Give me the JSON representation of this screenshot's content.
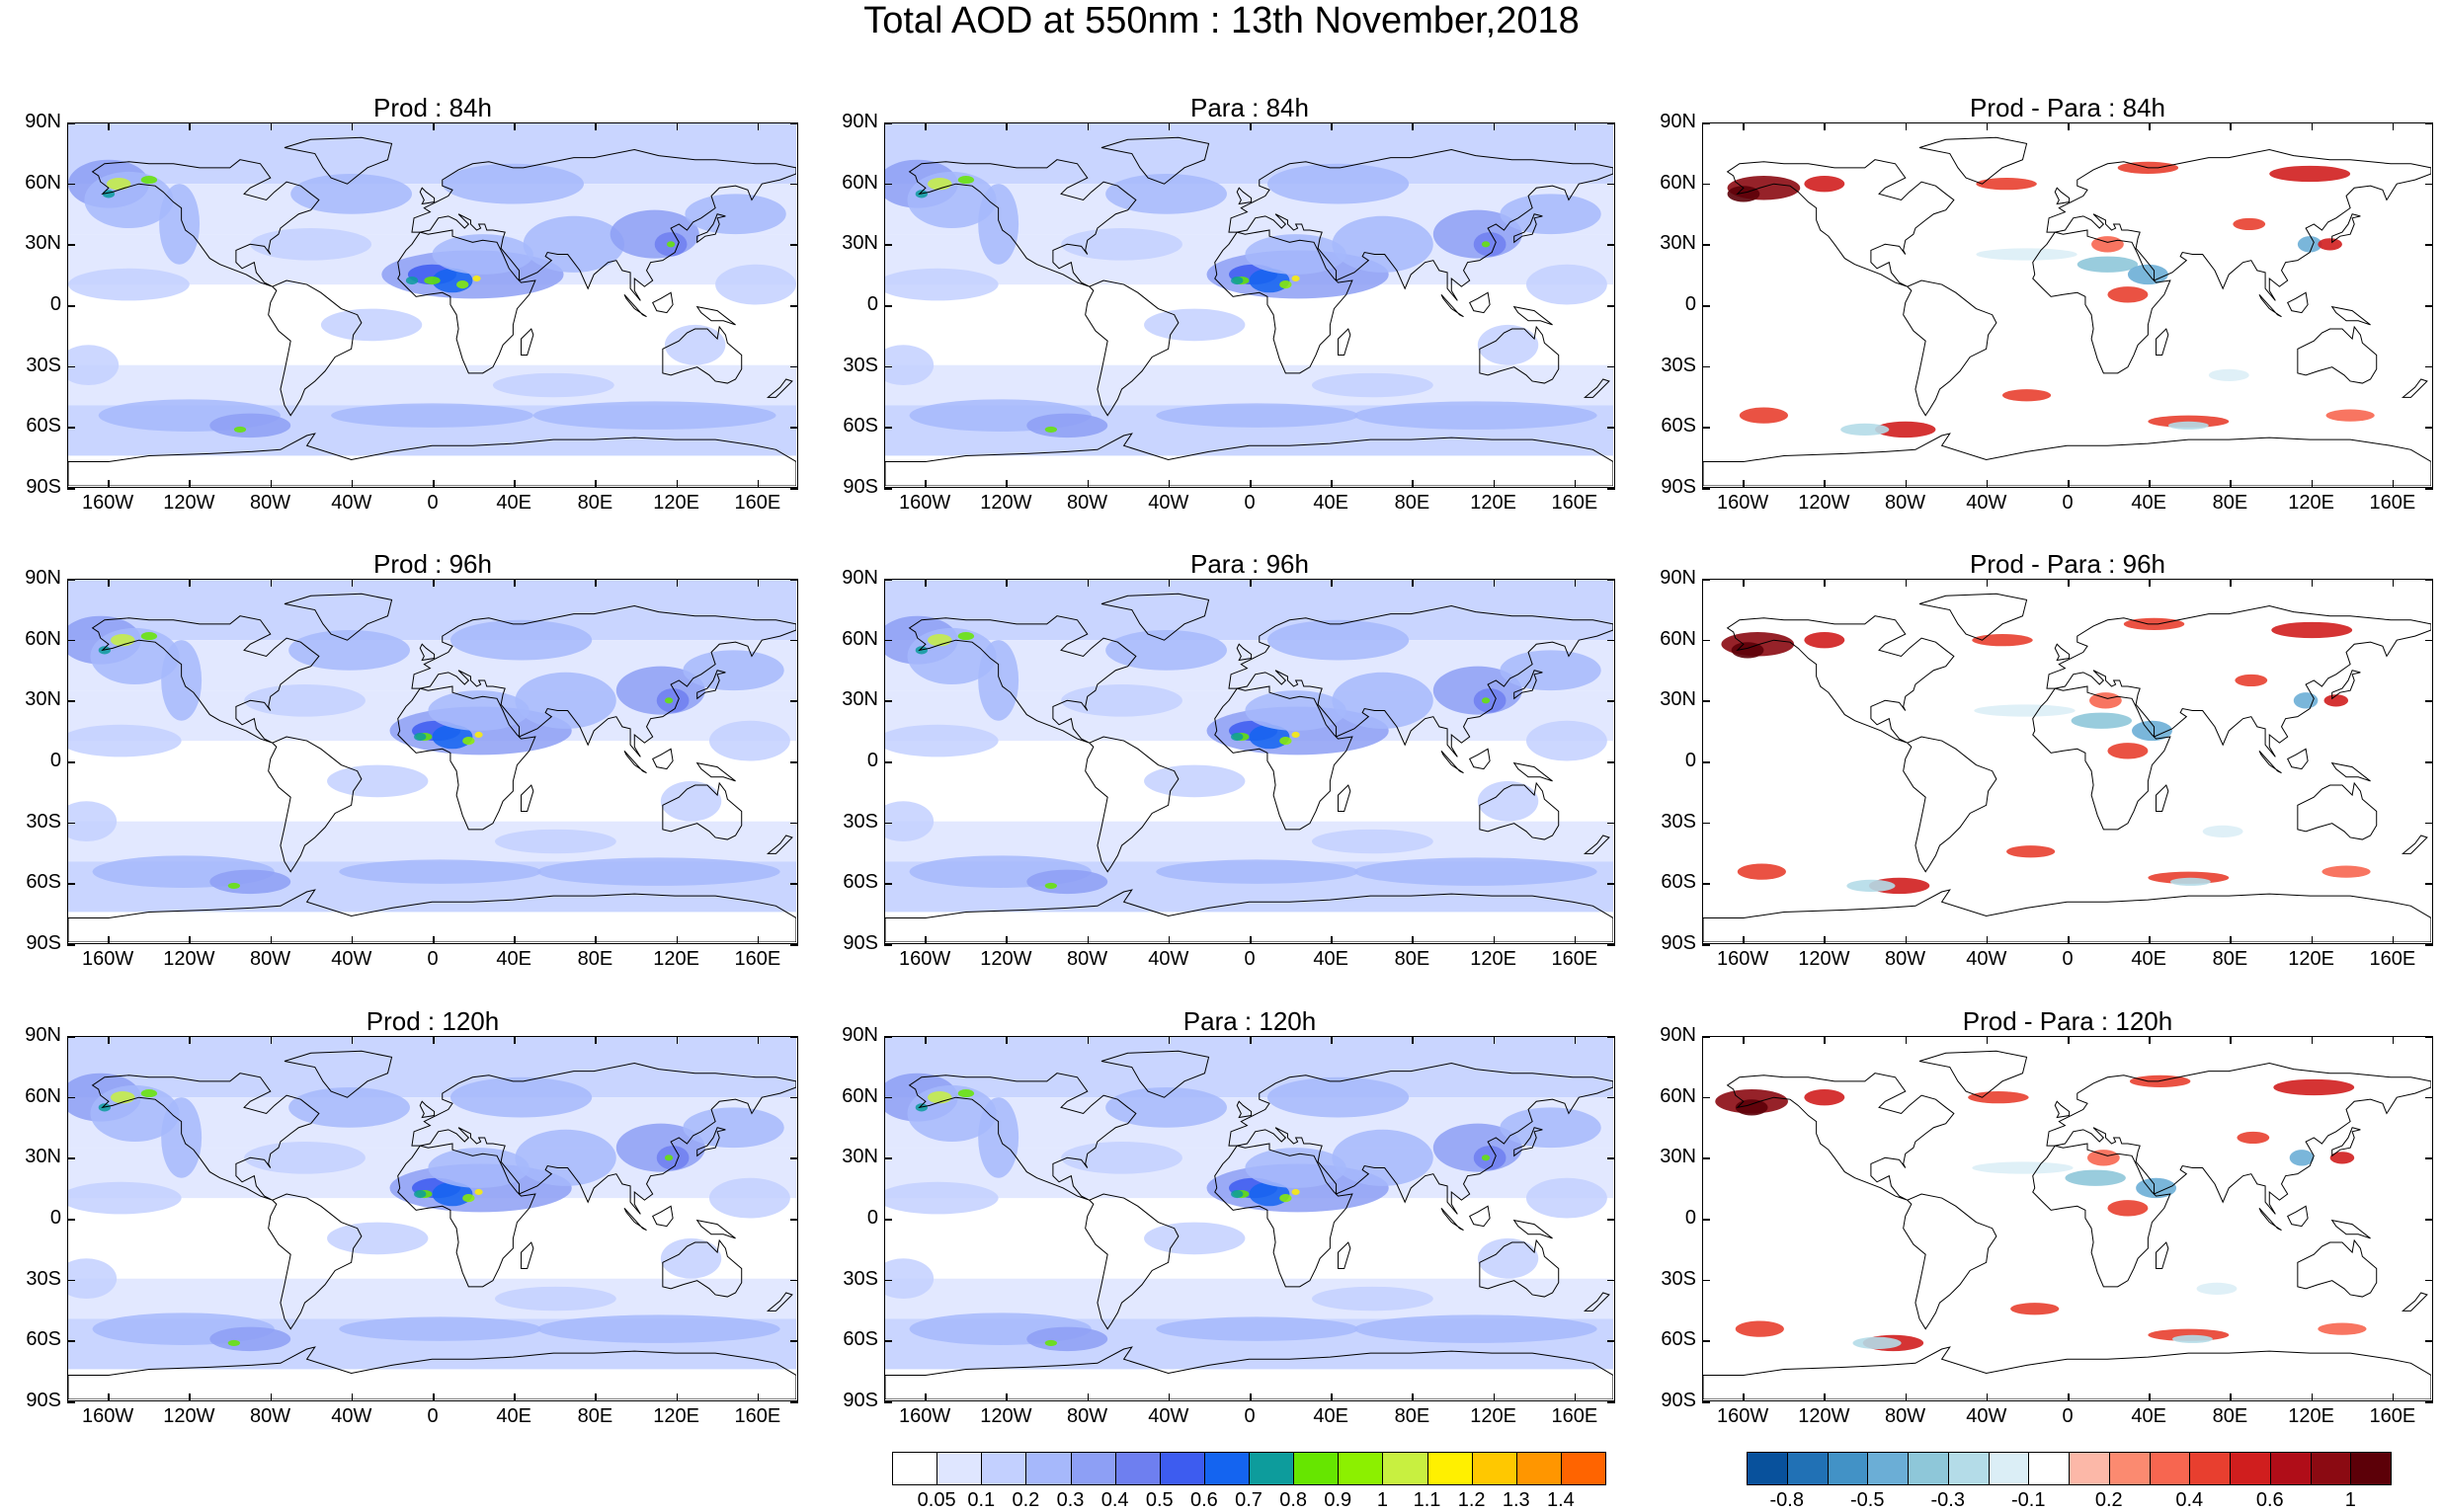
{
  "title": "Total AOD at 550nm : 13th November,2018",
  "panels": [
    {
      "title": "Prod : 84h",
      "kind": "field"
    },
    {
      "title": "Para : 84h",
      "kind": "field"
    },
    {
      "title": "Prod - Para : 84h",
      "kind": "diff"
    },
    {
      "title": "Prod : 96h",
      "kind": "field"
    },
    {
      "title": "Para : 96h",
      "kind": "field"
    },
    {
      "title": "Prod - Para : 96h",
      "kind": "diff"
    },
    {
      "title": "Prod : 120h",
      "kind": "field"
    },
    {
      "title": "Para : 120h",
      "kind": "field"
    },
    {
      "title": "Prod - Para : 120h",
      "kind": "diff"
    }
  ],
  "lat_labels": [
    "90N",
    "60N",
    "30N",
    "0",
    "30S",
    "60S",
    "90S"
  ],
  "lon_labels": [
    "160W",
    "120W",
    "80W",
    "40W",
    "0",
    "40E",
    "80E",
    "120E",
    "160E"
  ],
  "aod_colorbar": {
    "labels": [
      "0.05",
      "0.1",
      "0.2",
      "0.3",
      "0.4",
      "0.5",
      "0.6",
      "0.7",
      "0.8",
      "0.9",
      "1",
      "1.1",
      "1.2",
      "1.3",
      "1.4"
    ],
    "colors": [
      "#ffffff",
      "#dfe6ff",
      "#c3d0ff",
      "#a6b8fb",
      "#8d9ff5",
      "#6e7ff0",
      "#3d5cf0",
      "#1464f0",
      "#0d9c9c",
      "#66e600",
      "#8cf000",
      "#c8f040",
      "#fff000",
      "#ffc800",
      "#ff9600",
      "#ff6400"
    ]
  },
  "diff_colorbar": {
    "labels": [
      "-0.8",
      "-0.5",
      "-0.3",
      "-0.1",
      "0.2",
      "0.4",
      "0.6",
      "1"
    ],
    "colors": [
      "#08519c",
      "#2171b5",
      "#4292c6",
      "#6baed6",
      "#8ec7d9",
      "#b4dce8",
      "#dbeef6",
      "#ffffff",
      "#fcb8a8",
      "#fb8a70",
      "#f76650",
      "#e83f2f",
      "#d01e1e",
      "#b00d18",
      "#8b0a12",
      "#5c0008"
    ]
  }
}
